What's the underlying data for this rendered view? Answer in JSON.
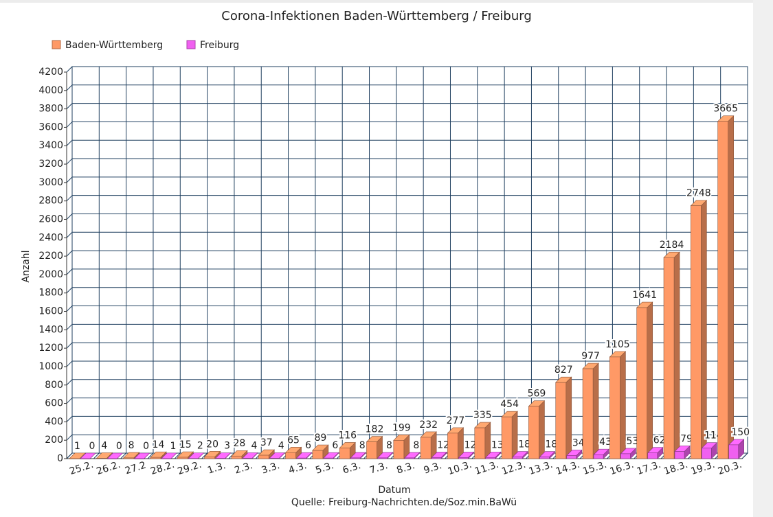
{
  "chart_data": {
    "type": "bar3d",
    "title": "Corona-Infektionen Baden-Württemberg / Freiburg",
    "xlabel": "Datum",
    "ylabel": "Anzahl",
    "source": "Quelle: Freiburg-Nachrichten.de/Soz.min.BaWü",
    "categories": [
      "25.2.",
      "26.2.",
      "27.2",
      "28.2.",
      "29.2.",
      "1.3.",
      "2.3.",
      "3.3.",
      "4.3.",
      "5.3.",
      "6.3.",
      "7.3.",
      "8.3.",
      "9.3.",
      "10.3.",
      "11.3.",
      "12.3.",
      "13.3.",
      "14.3.",
      "15.3.",
      "16.3.",
      "17.3.",
      "18.3.",
      "19.3.",
      "20.3."
    ],
    "series": [
      {
        "name": "Baden-Württemberg",
        "color": "#ff9966",
        "values": [
          1,
          4,
          8,
          14,
          15,
          20,
          28,
          37,
          65,
          89,
          116,
          182,
          199,
          232,
          277,
          335,
          454,
          569,
          827,
          977,
          1105,
          1641,
          2184,
          2748,
          3665
        ]
      },
      {
        "name": "Freiburg",
        "color": "#f060f0",
        "values": [
          0,
          0,
          0,
          1,
          2,
          3,
          4,
          4,
          6,
          6,
          8,
          8,
          8,
          12,
          12,
          13,
          18,
          18,
          34,
          43,
          53,
          62,
          79,
          114,
          150
        ]
      }
    ],
    "ylim": [
      0,
      4200
    ],
    "yticks": [
      0,
      200,
      400,
      600,
      800,
      1000,
      1200,
      1400,
      1600,
      1800,
      2000,
      2200,
      2400,
      2600,
      2800,
      3000,
      3200,
      3400,
      3600,
      3800,
      4000,
      4200
    ],
    "grid": true,
    "legend_position": "top-left"
  }
}
